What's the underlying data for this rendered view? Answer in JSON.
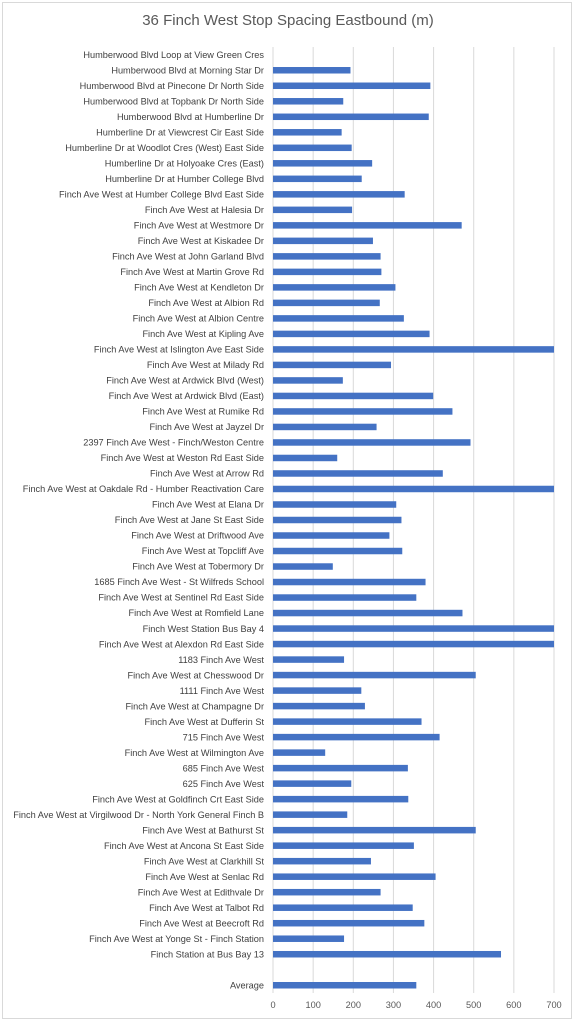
{
  "chart_data": {
    "type": "bar",
    "orientation": "horizontal",
    "title": "36 Finch West Stop Spacing Eastbound (m)",
    "xlim": [
      0,
      700
    ],
    "xticks": [
      0,
      100,
      200,
      300,
      400,
      500,
      600,
      700
    ],
    "grid": true,
    "bar_color": "#4472c4",
    "gridline_color": "#d9d9d9",
    "categories": [
      "Humberwood Blvd Loop at View Green Cres",
      "Humberwood Blvd at Morning Star Dr",
      "Humberwood Blvd at Pinecone Dr North Side",
      "Humberwood Blvd at Topbank Dr North Side",
      "Humberwood Blvd at Humberline Dr",
      "Humberline Dr at Viewcrest Cir East Side",
      "Humberline Dr at Woodlot Cres (West) East Side",
      "Humberline Dr at Holyoake Cres (East)",
      "Humberline Dr at Humber College Blvd",
      "Finch Ave West at Humber College Blvd East Side",
      "Finch Ave West at Halesia Dr",
      "Finch Ave West at Westmore Dr",
      "Finch Ave West at Kiskadee Dr",
      "Finch Ave West at John Garland Blvd",
      "Finch Ave West at Martin Grove Rd",
      "Finch Ave West at Kendleton Dr",
      "Finch Ave West at Albion Rd",
      "Finch Ave West at Albion Centre",
      "Finch Ave West at Kipling Ave",
      "Finch Ave West at Islington Ave East Side",
      "Finch Ave West at Milady Rd",
      "Finch Ave West at Ardwick Blvd (West)",
      "Finch Ave West at Ardwick Blvd (East)",
      "Finch Ave West at Rumike Rd",
      "Finch Ave West at Jayzel Dr",
      "2397 Finch Ave West - Finch/Weston Centre",
      "Finch Ave West at Weston Rd East Side",
      "Finch Ave West at Arrow Rd",
      "Finch Ave West at Oakdale Rd  - Humber Reactivation Care",
      "Finch Ave West at Elana Dr",
      "Finch Ave West at Jane St East Side",
      "Finch Ave West at Driftwood Ave",
      "Finch Ave West at Topcliff Ave",
      "Finch Ave West at Tobermory Dr",
      "1685 Finch Ave West - St Wilfreds School",
      "Finch Ave West at Sentinel Rd East Side",
      "Finch Ave West at Romfield Lane",
      "Finch West Station Bus Bay 4",
      "Finch Ave West at Alexdon Rd East Side",
      "1183 Finch Ave West",
      "Finch Ave West at Chesswood Dr",
      "1111 Finch Ave West",
      "Finch Ave West at Champagne Dr",
      "Finch Ave West at Dufferin St",
      "715 Finch Ave West",
      "Finch Ave West at Wilmington Ave",
      "685 Finch Ave West",
      "625 Finch Ave West",
      "Finch Ave West at Goldfinch Crt East Side",
      "Finch Ave West at Virgilwood Dr - North York General Finch B",
      "Finch Ave West at Bathurst St",
      "Finch Ave West at Ancona St East Side",
      "Finch Ave West at Clarkhill St",
      "Finch Ave West at Senlac Rd",
      "Finch Ave West at Edithvale Dr",
      "Finch Ave West at Talbot Rd",
      "Finch Ave West at Beecroft Rd",
      "Finch Ave West at Yonge St - Finch Station",
      "Finch Station at Bus Bay 13",
      "",
      "Average"
    ],
    "values": [
      0,
      193,
      392,
      175,
      388,
      171,
      196,
      247,
      221,
      328,
      197,
      470,
      249,
      268,
      270,
      305,
      266,
      326,
      390,
      700,
      294,
      174,
      399,
      447,
      258,
      492,
      160,
      423,
      700,
      307,
      320,
      290,
      322,
      149,
      380,
      357,
      472,
      700,
      700,
      177,
      505,
      220,
      229,
      370,
      415,
      130,
      336,
      195,
      337,
      185,
      505,
      351,
      244,
      405,
      268,
      348,
      377,
      177,
      568,
      null,
      357
    ]
  }
}
